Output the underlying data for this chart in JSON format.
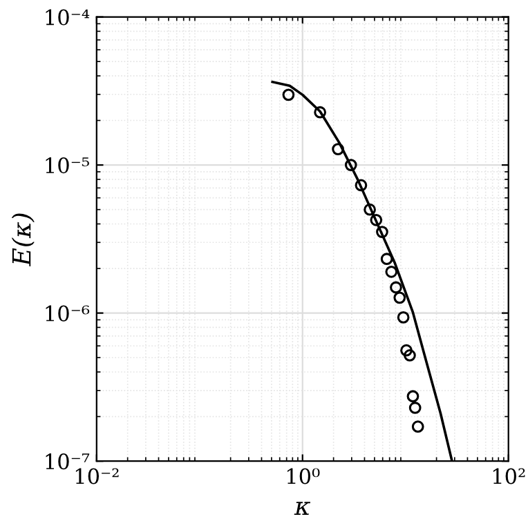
{
  "chart_data": {
    "type": "scatter",
    "xlabel": "κ",
    "ylabel": "E(κ)",
    "log": "xy",
    "grid": true,
    "xlim": [
      0.01,
      100
    ],
    "ylim": [
      1e-07,
      0.0001
    ],
    "xticks": [
      {
        "value": 0.01,
        "label": "10⁻²"
      },
      {
        "value": 1,
        "label": "10⁰"
      },
      {
        "value": 100,
        "label": "10²"
      }
    ],
    "yticks": [
      {
        "value": 1e-07,
        "label": "10⁻⁷"
      },
      {
        "value": 1e-06,
        "label": "10⁻⁶"
      },
      {
        "value": 1e-05,
        "label": "10⁻⁵"
      },
      {
        "value": 0.0001,
        "label": "10⁻⁴"
      }
    ],
    "series": [
      {
        "marker": "circle",
        "color": "#000000",
        "x": [
          0.73,
          1.48,
          2.21,
          2.95,
          3.7,
          4.5,
          5.19,
          5.93,
          6.58,
          7.29,
          8.08,
          8.77,
          9.53,
          10.2,
          11.0,
          11.8,
          12.4,
          13.2
        ],
        "values": [
          2.98e-05,
          2.27e-05,
          1.28e-05,
          1e-05,
          7.3e-06,
          5e-06,
          4.25e-06,
          3.53e-06,
          2.32e-06,
          1.9e-06,
          1.49e-06,
          1.27e-06,
          9.35e-07,
          5.6e-07,
          5.18e-07,
          2.74e-07,
          2.29e-07,
          1.71e-07
        ]
      },
      {
        "type": "line",
        "marker": "none",
        "line_style": "solid",
        "color": "#000000",
        "x": [
          0.51,
          0.75,
          1.0,
          1.48,
          2.28,
          3.44,
          5.19,
          7.83,
          11.8,
          16.1,
          21.9,
          28.3
        ],
        "values": [
          3.64e-05,
          3.43e-05,
          2.98e-05,
          2.3e-05,
          1.41e-05,
          7.96e-06,
          4.18e-06,
          2.2e-06,
          1.01e-06,
          4.57e-07,
          2.1e-07,
          1e-07
        ]
      }
    ]
  }
}
